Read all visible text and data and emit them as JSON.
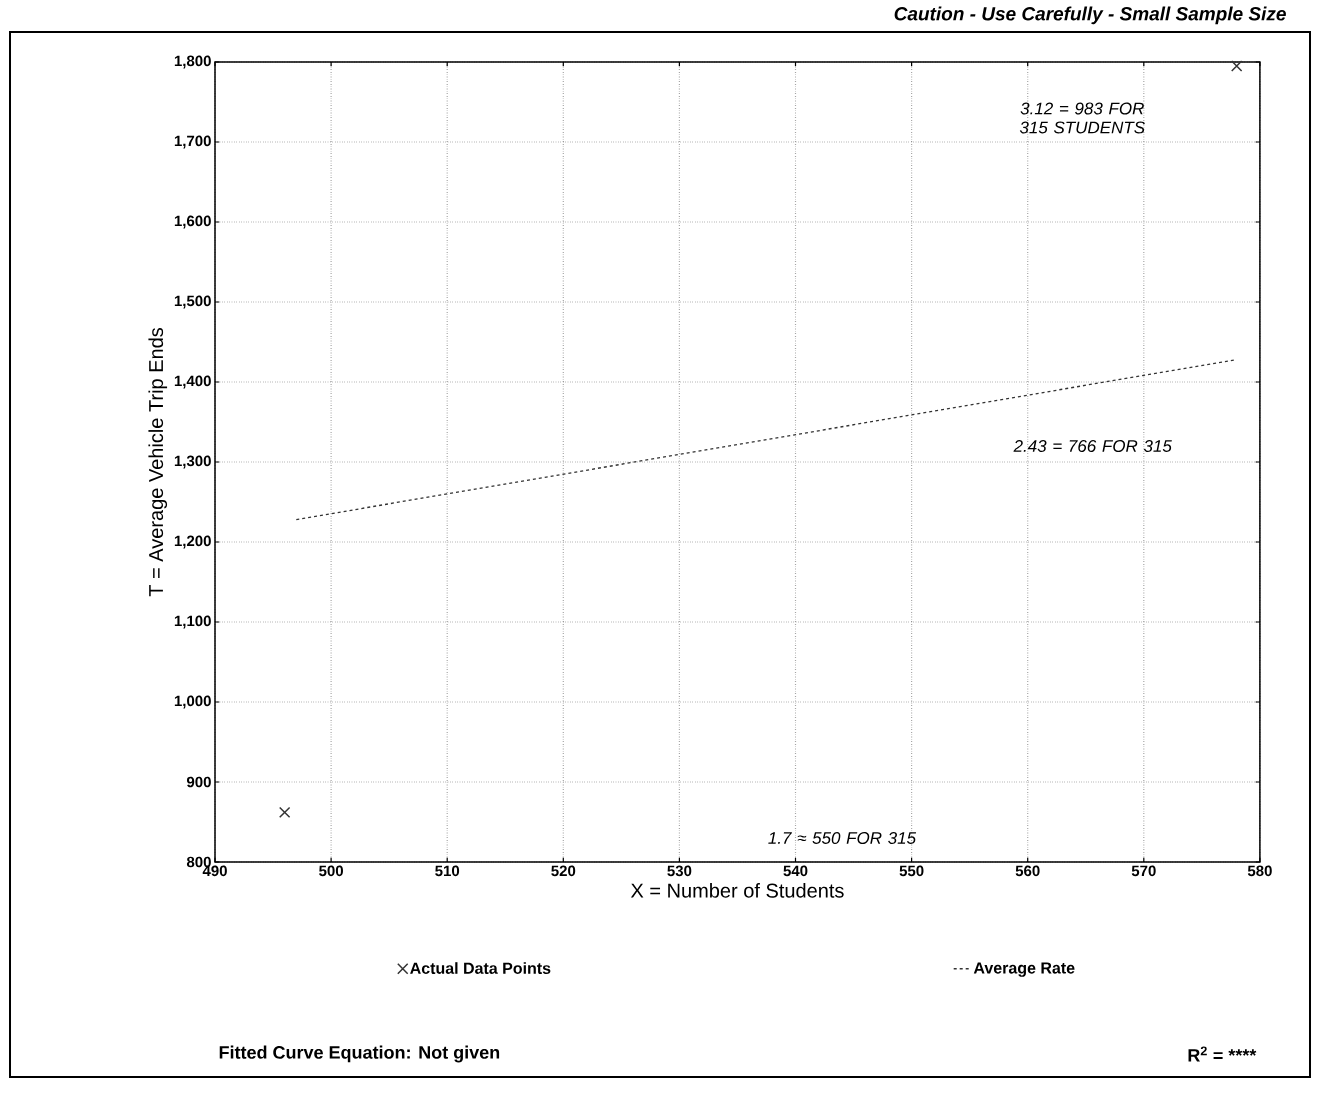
{
  "chart_data": {
    "type": "scatter",
    "subtitle": "Caution - Use Carefully - Small Sample Size",
    "xlabel": "X = Number of Students",
    "ylabel": "T = Average Vehicle Trip Ends",
    "xlim": [
      490,
      580
    ],
    "ylim": [
      800,
      1800
    ],
    "xticks": [
      490,
      500,
      510,
      520,
      530,
      540,
      550,
      560,
      570,
      580
    ],
    "yticks": [
      {
        "value": 800,
        "label": "800"
      },
      {
        "value": 900,
        "label": "900"
      },
      {
        "value": 1000,
        "label": "1,000"
      },
      {
        "value": 1100,
        "label": "1,100"
      },
      {
        "value": 1200,
        "label": "1,200"
      },
      {
        "value": 1300,
        "label": "1,300"
      },
      {
        "value": 1400,
        "label": "1,400"
      },
      {
        "value": 1500,
        "label": "1,500"
      },
      {
        "value": 1600,
        "label": "1,600"
      },
      {
        "value": 1700,
        "label": "1,700"
      },
      {
        "value": 1800,
        "label": "1,800"
      }
    ],
    "grid": true,
    "legend": "bottom",
    "series": [
      {
        "name": "Actual Data Points",
        "marker": "cross",
        "color": "#333333",
        "x": [
          496,
          578
        ],
        "values": [
          862,
          1795
        ]
      },
      {
        "name": "Average Rate",
        "type": "line",
        "marker": "none",
        "line_style": "dashed",
        "color": "#333333",
        "x": [
          497,
          578
        ],
        "values": [
          1228,
          1428
        ]
      }
    ],
    "annotations": [
      "3.12 = 983 FOR 315 STUDENTS",
      "2.43 = 766 FOR 315",
      "1.7 ≈ 550 FOR 315",
      "Fitted Curve Equation:  Not given",
      "R$^{2}$ = ****"
    ]
  }
}
